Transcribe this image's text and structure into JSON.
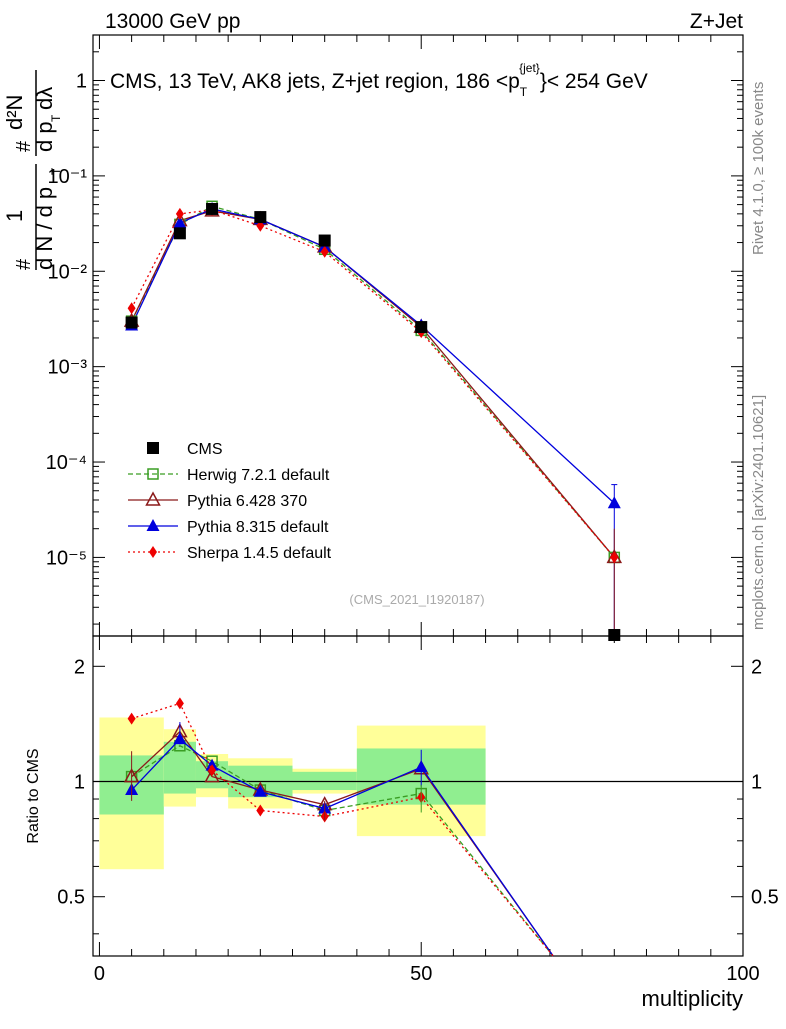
{
  "header": {
    "left": "13000 GeV pp",
    "right": "Z+Jet"
  },
  "side_labels": {
    "rivet": "Rivet 4.1.0, ≥ 100k events",
    "mcplots": "mcplots.cern.ch [arXiv:2401.10621]"
  },
  "chart_data": {
    "type": "line",
    "title": "CMS, 13 TeV, AK8 jets, Z+jet region, 186 <p_T^{jet}< 254 GeV",
    "title_parts": {
      "main": "CMS, 13 TeV, AK8 jets, Z+jet region, 186 <p",
      "sub": "T",
      "sup": "{jet}",
      "tail": "}< 254 GeV"
    },
    "ylabel_top": "1/(dN/dp_T) · d²N/(dp_T dλ)",
    "ylabel_parts": {
      "one": "1",
      "hash1": "#",
      "den": "d N / d p",
      "T": "T",
      "hash2": "#",
      "num": "d²N",
      "den2": "d p",
      "T2": "T",
      "dl": "dλ"
    },
    "yscale": "log",
    "ylim": [
      1.5e-06,
      3
    ],
    "xlim": [
      -1,
      100
    ],
    "xlabel": "multiplicity",
    "xticks": [
      "0",
      "50",
      "100"
    ],
    "yticks_top": [
      "10⁻⁵",
      "10⁻⁴",
      "10⁻³",
      "10⁻²",
      "10⁻¹",
      "1"
    ],
    "analysis_id": "(CMS_2021_I1920187)",
    "bins": [
      [
        0,
        10
      ],
      [
        10,
        15
      ],
      [
        15,
        20
      ],
      [
        20,
        30
      ],
      [
        30,
        40
      ],
      [
        40,
        60
      ],
      [
        60,
        100
      ]
    ],
    "x": [
      5,
      12.5,
      17.5,
      25,
      35,
      50,
      80
    ],
    "series": [
      {
        "name": "CMS",
        "color": "#000000",
        "marker": "square",
        "dash": "none",
        "values": [
          0.0029,
          0.025,
          0.045,
          0.037,
          0.021,
          0.0026,
          1.5e-06
        ]
      },
      {
        "name": "Herwig 7.2.1 default",
        "color": "#3a9d23",
        "marker": "open-square",
        "dash": "5,3",
        "values": [
          0.003,
          0.031,
          0.048,
          0.035,
          0.017,
          0.0024,
          1e-05
        ]
      },
      {
        "name": "Pythia 6.428 370",
        "color": "#8b1a1a",
        "marker": "open-triangle",
        "dash": "none",
        "values": [
          0.003,
          0.034,
          0.043,
          0.035,
          0.018,
          0.0026,
          1e-05
        ]
      },
      {
        "name": "Pythia 8.315 default",
        "color": "#0000dd",
        "marker": "triangle",
        "dash": "none",
        "values": [
          0.0027,
          0.032,
          0.045,
          0.035,
          0.018,
          0.0027,
          3.7e-05
        ]
      },
      {
        "name": "Sherpa 1.4.5 default",
        "color": "#ee0000",
        "marker": "diamond",
        "dash": "2,3",
        "values": [
          0.0041,
          0.04,
          0.044,
          0.03,
          0.016,
          0.0023,
          1e-05
        ]
      }
    ],
    "ratio": {
      "ylabel": "Ratio to CMS",
      "ylim": [
        0.35,
        2.4
      ],
      "yticks": [
        "0.5",
        "1",
        "2"
      ],
      "band_inner": [
        [
          0.82,
          1.17
        ],
        [
          0.93,
          1.27
        ],
        [
          0.96,
          1.13
        ],
        [
          0.91,
          1.1
        ],
        [
          0.95,
          1.06
        ],
        [
          0.87,
          1.22
        ]
      ],
      "band_outer": [
        [
          0.59,
          1.47
        ],
        [
          0.86,
          1.37
        ],
        [
          0.91,
          1.18
        ],
        [
          0.85,
          1.15
        ],
        [
          0.93,
          1.08
        ],
        [
          0.72,
          1.4
        ]
      ],
      "series": {
        "Herwig 7.2.1 default": [
          1.03,
          1.24,
          1.13,
          0.95,
          0.84,
          0.93,
          0.0
        ],
        "Pythia 6.428 370": [
          1.03,
          1.35,
          1.03,
          0.95,
          0.87,
          1.08,
          0.0
        ],
        "Pythia 8.315 default": [
          0.95,
          1.29,
          1.1,
          0.94,
          0.85,
          1.09,
          0.0
        ],
        "Sherpa 1.4.5 default": [
          1.46,
          1.6,
          1.07,
          0.84,
          0.81,
          0.91,
          0.0
        ]
      },
      "line_end_x": [
        70.5,
        70.5,
        70.5,
        70.5
      ]
    }
  }
}
